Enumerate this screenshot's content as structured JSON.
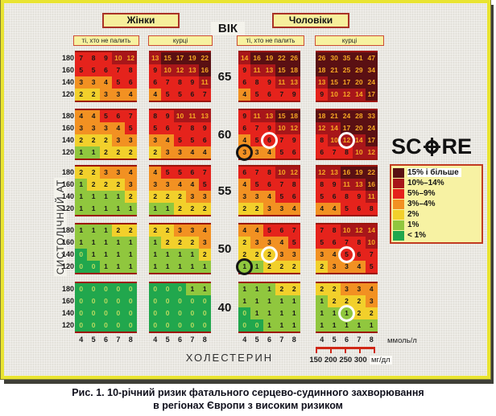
{
  "headers": {
    "women": "Жінки",
    "men": "Чоловіки",
    "age": "ВІК",
    "nonsmoker": "ті, хто не палить",
    "smoker": "курці"
  },
  "axes": {
    "sbp_label": "СИСТОЛІЧНИЙ АТ",
    "sbp_ticks": [
      "180",
      "160",
      "140",
      "120"
    ],
    "chol_label": "ХОЛЕСТЕРИН",
    "chol_ticks": [
      "4",
      "5",
      "6",
      "7",
      "8"
    ],
    "mmol_unit": "ммоль/л",
    "mg_ticks": [
      "150",
      "200",
      "250",
      "300"
    ],
    "mg_unit": "мг/дл"
  },
  "legend": {
    "logo": "SCORE",
    "items": [
      {
        "label": "15% і більше",
        "color": "#5a1013"
      },
      {
        "label": "10%–14%",
        "color": "#a8161a"
      },
      {
        "label": "5%–9%",
        "color": "#e5231c"
      },
      {
        "label": "3%–4%",
        "color": "#f29122"
      },
      {
        "label": "2%",
        "color": "#f2d02b"
      },
      {
        "label": "1%",
        "color": "#90c73e"
      },
      {
        "label": "< 1%",
        "color": "#21a74d"
      }
    ]
  },
  "colors": {
    "text_normal": "#171717",
    "text_high_value": "#f7a823",
    "text_zero_value": "#b9da60",
    "frame_border": "#e9e431",
    "grid_edge": "#9c150c"
  },
  "chart_data": {
    "type": "heatmap",
    "title": "SCORE — 10-річний ризик фатального серцево-судинного захворювання",
    "ages": [
      "65",
      "60",
      "55",
      "50",
      "40"
    ],
    "sbp_rows": [
      180,
      160,
      140,
      120
    ],
    "cholesterol_cols": [
      4,
      5,
      6,
      7,
      8
    ],
    "blocks": [
      {
        "age": "65",
        "sex": "women",
        "smoker": false,
        "rows": [
          [
            7,
            8,
            9,
            10,
            12
          ],
          [
            5,
            5,
            6,
            7,
            8
          ],
          [
            3,
            3,
            4,
            5,
            6
          ],
          [
            2,
            2,
            3,
            3,
            4
          ]
        ]
      },
      {
        "age": "65",
        "sex": "women",
        "smoker": true,
        "rows": [
          [
            13,
            15,
            17,
            19,
            22
          ],
          [
            9,
            10,
            12,
            13,
            16
          ],
          [
            6,
            7,
            8,
            9,
            11
          ],
          [
            4,
            5,
            5,
            6,
            7
          ]
        ]
      },
      {
        "age": "65",
        "sex": "men",
        "smoker": false,
        "rows": [
          [
            14,
            16,
            19,
            22,
            26
          ],
          [
            9,
            11,
            13,
            15,
            18
          ],
          [
            6,
            8,
            9,
            11,
            13
          ],
          [
            4,
            5,
            6,
            7,
            9
          ]
        ]
      },
      {
        "age": "65",
        "sex": "men",
        "smoker": true,
        "rows": [
          [
            26,
            30,
            35,
            41,
            47
          ],
          [
            18,
            21,
            25,
            29,
            34
          ],
          [
            13,
            15,
            17,
            20,
            24
          ],
          [
            9,
            10,
            12,
            14,
            17
          ]
        ]
      },
      {
        "age": "60",
        "sex": "women",
        "smoker": false,
        "rows": [
          [
            4,
            4,
            5,
            6,
            7
          ],
          [
            3,
            3,
            3,
            4,
            5
          ],
          [
            2,
            2,
            2,
            3,
            3
          ],
          [
            1,
            1,
            2,
            2,
            2
          ]
        ]
      },
      {
        "age": "60",
        "sex": "women",
        "smoker": true,
        "rows": [
          [
            8,
            9,
            10,
            11,
            13
          ],
          [
            5,
            6,
            7,
            8,
            9
          ],
          [
            3,
            4,
            5,
            5,
            6
          ],
          [
            2,
            3,
            3,
            4,
            4
          ]
        ]
      },
      {
        "age": "60",
        "sex": "men",
        "smoker": false,
        "rows": [
          [
            9,
            11,
            13,
            15,
            18
          ],
          [
            6,
            7,
            9,
            10,
            12
          ],
          [
            4,
            5,
            6,
            7,
            9
          ],
          [
            3,
            3,
            4,
            5,
            6
          ]
        ]
      },
      {
        "age": "60",
        "sex": "men",
        "smoker": true,
        "rows": [
          [
            18,
            21,
            24,
            28,
            33
          ],
          [
            12,
            14,
            17,
            20,
            24
          ],
          [
            8,
            10,
            12,
            14,
            17
          ],
          [
            6,
            7,
            8,
            10,
            12
          ]
        ]
      },
      {
        "age": "55",
        "sex": "women",
        "smoker": false,
        "rows": [
          [
            2,
            2,
            3,
            3,
            4
          ],
          [
            1,
            2,
            2,
            2,
            3
          ],
          [
            1,
            1,
            1,
            1,
            2
          ],
          [
            1,
            1,
            1,
            1,
            1
          ]
        ]
      },
      {
        "age": "55",
        "sex": "women",
        "smoker": true,
        "rows": [
          [
            4,
            5,
            5,
            6,
            7
          ],
          [
            3,
            3,
            4,
            4,
            5
          ],
          [
            2,
            2,
            2,
            3,
            3
          ],
          [
            1,
            1,
            2,
            2,
            2
          ]
        ]
      },
      {
        "age": "55",
        "sex": "men",
        "smoker": false,
        "rows": [
          [
            6,
            7,
            8,
            10,
            12
          ],
          [
            4,
            5,
            6,
            7,
            8
          ],
          [
            3,
            3,
            4,
            5,
            6
          ],
          [
            2,
            2,
            3,
            3,
            4
          ]
        ]
      },
      {
        "age": "55",
        "sex": "men",
        "smoker": true,
        "rows": [
          [
            12,
            13,
            16,
            19,
            22
          ],
          [
            8,
            9,
            11,
            13,
            16
          ],
          [
            5,
            6,
            8,
            9,
            11
          ],
          [
            4,
            4,
            5,
            6,
            8
          ]
        ]
      },
      {
        "age": "50",
        "sex": "women",
        "smoker": false,
        "rows": [
          [
            1,
            1,
            1,
            2,
            2
          ],
          [
            1,
            1,
            1,
            1,
            1
          ],
          [
            0,
            1,
            1,
            1,
            1
          ],
          [
            0,
            0,
            1,
            1,
            1
          ]
        ]
      },
      {
        "age": "50",
        "sex": "women",
        "smoker": true,
        "rows": [
          [
            2,
            2,
            3,
            3,
            4
          ],
          [
            1,
            2,
            2,
            2,
            3
          ],
          [
            1,
            1,
            1,
            1,
            2
          ],
          [
            1,
            1,
            1,
            1,
            1
          ]
        ]
      },
      {
        "age": "50",
        "sex": "men",
        "smoker": false,
        "rows": [
          [
            4,
            4,
            5,
            6,
            7
          ],
          [
            2,
            3,
            3,
            4,
            5
          ],
          [
            2,
            2,
            2,
            3,
            3
          ],
          [
            1,
            1,
            2,
            2,
            2
          ]
        ]
      },
      {
        "age": "50",
        "sex": "men",
        "smoker": true,
        "rows": [
          [
            7,
            8,
            10,
            12,
            14
          ],
          [
            5,
            6,
            7,
            8,
            10
          ],
          [
            3,
            4,
            5,
            6,
            7
          ],
          [
            2,
            3,
            3,
            4,
            5
          ]
        ]
      },
      {
        "age": "40",
        "sex": "women",
        "smoker": false,
        "rows": [
          [
            0,
            0,
            0,
            0,
            0
          ],
          [
            0,
            0,
            0,
            0,
            0
          ],
          [
            0,
            0,
            0,
            0,
            0
          ],
          [
            0,
            0,
            0,
            0,
            0
          ]
        ]
      },
      {
        "age": "40",
        "sex": "women",
        "smoker": true,
        "rows": [
          [
            0,
            0,
            0,
            1,
            1
          ],
          [
            0,
            0,
            0,
            0,
            0
          ],
          [
            0,
            0,
            0,
            0,
            0
          ],
          [
            0,
            0,
            0,
            0,
            0
          ]
        ]
      },
      {
        "age": "40",
        "sex": "men",
        "smoker": false,
        "rows": [
          [
            1,
            1,
            1,
            2,
            2
          ],
          [
            1,
            1,
            1,
            1,
            1
          ],
          [
            0,
            1,
            1,
            1,
            1
          ],
          [
            0,
            0,
            1,
            1,
            1
          ]
        ]
      },
      {
        "age": "40",
        "sex": "men",
        "smoker": true,
        "rows": [
          [
            2,
            2,
            3,
            3,
            4
          ],
          [
            1,
            2,
            2,
            2,
            3
          ],
          [
            1,
            1,
            1,
            2,
            2
          ],
          [
            1,
            1,
            1,
            1,
            1
          ]
        ]
      }
    ]
  },
  "annotations": {
    "circles": [
      {
        "age": "60",
        "sex": "men",
        "smoker": false,
        "row": 2,
        "cell": 2,
        "color": "#ffffff"
      },
      {
        "age": "60",
        "sex": "men",
        "smoker": false,
        "row": 3,
        "cell": 0,
        "color": "#141414"
      },
      {
        "age": "60",
        "sex": "men",
        "smoker": true,
        "row": 2,
        "cell": 2,
        "color": "#ffffff"
      },
      {
        "age": "50",
        "sex": "men",
        "smoker": false,
        "row": 2,
        "cell": 2,
        "color": "#ffffff"
      },
      {
        "age": "50",
        "sex": "men",
        "smoker": false,
        "row": 3,
        "cell": 0,
        "color": "#141414"
      },
      {
        "age": "50",
        "sex": "men",
        "smoker": true,
        "row": 2,
        "cell": 2,
        "color": "#ffffff"
      },
      {
        "age": "40",
        "sex": "men",
        "smoker": true,
        "row": 2,
        "cell": 2,
        "color": "#ffffff"
      }
    ]
  },
  "caption": {
    "line1": "Рис. 1. 10-річний ризик фатального серцево-судинного захворювання",
    "line2": "в регіонах Європи з високим ризиком"
  }
}
